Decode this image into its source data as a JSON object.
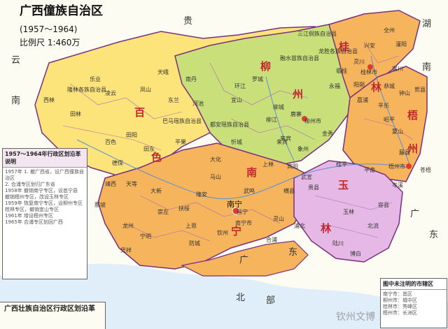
{
  "map": {
    "title": "广西僮族自治区",
    "period": "(1957～1964)",
    "scale": "比例尺 1:460万",
    "capital": "南宁"
  },
  "neighbors": {
    "guizhou": "贵",
    "hunan": "湖",
    "hunan2": "南",
    "yunnan": "云",
    "yunnan2": "南",
    "guangdong": "广",
    "guangdong2": "东",
    "guangdong3": "广",
    "guangdong4": "东",
    "beibu": "北",
    "beibu2": "部"
  },
  "regions": {
    "gui": "桂",
    "lin": "林",
    "liu": "柳",
    "zhou": "州",
    "wu": "梧",
    "zhou2": "州",
    "bai": "百",
    "se": "色",
    "nan": "南",
    "ning": "宁",
    "yu": "玉",
    "lin2": "林"
  },
  "cities": [
    "隆林各族自治县",
    "乐业",
    "田林",
    "西林",
    "凌云",
    "巴马瑶族自治县",
    "都安瑶族自治县",
    "宜山",
    "柳城",
    "罗城",
    "融水苗族自治县",
    "三江侗族自治县",
    "龙胜各族自治县",
    "全州",
    "兴安",
    "灌阳",
    "灵川",
    "临桂",
    "桂林市",
    "阳朔",
    "永福",
    "恭城",
    "荔浦",
    "平乐",
    "钟山",
    "富川",
    "贺县",
    "昭平",
    "蒙山",
    "藤县",
    "苍梧",
    "梧州市",
    "岑溪",
    "容县",
    "北流",
    "玉林",
    "陆川",
    "博白",
    "桂平",
    "平南",
    "贵县",
    "横县",
    "宾阳",
    "上林",
    "武鸣",
    "马山",
    "隆安",
    "扶绥",
    "崇左",
    "宁明",
    "凭祥",
    "龙州",
    "大新",
    "天等",
    "德保",
    "靖西",
    "那坡",
    "田东",
    "田阳",
    "平果",
    "百色",
    "南丹",
    "天峨",
    "东兰",
    "凤山",
    "河池",
    "环江",
    "忻城",
    "来宾",
    "象州",
    "武宣",
    "鹿寨",
    "柳江",
    "柳州市",
    "金秀",
    "合浦",
    "钦州",
    "灵山",
    "浦北",
    "防城",
    "上思",
    "邕宁",
    "南宁市",
    "大化",
    "来宾"
  ],
  "notes": {
    "header": "1957～1964年行政区划沿革说明",
    "lines": [
      "1957年 1. 撤广西省，设广西僮族自治区",
      "2. 合浦专区划归广东省",
      "1958年 撤销南宁专区，设邕宁县",
      "撤销梧州专区，改设玉林专区",
      "1959年 恢复南宁专区，设柳州专区",
      "桂林专区，撤销宜山专区",
      "1961年 增设梧州专区",
      "1965年 合浦专区划回广西"
    ]
  },
  "legend": {
    "header": "图中未注明的市辖区",
    "rows": [
      "南宁市：邕区",
      "柳州市：城中区",
      "桂林市：秀峰区",
      "梧州市：长洲区"
    ]
  },
  "bottom_title": "广西壮族自治区行政区划沿革",
  "watermark": "钦州文博",
  "colors": {
    "sea": "#dfeef9",
    "outside": "#fdfcf2",
    "yellow": "#fde47a",
    "orange": "#f6b45c",
    "green": "#c9e07a",
    "pink": "#e5b8e6",
    "boundary": "#7a2f7d"
  }
}
